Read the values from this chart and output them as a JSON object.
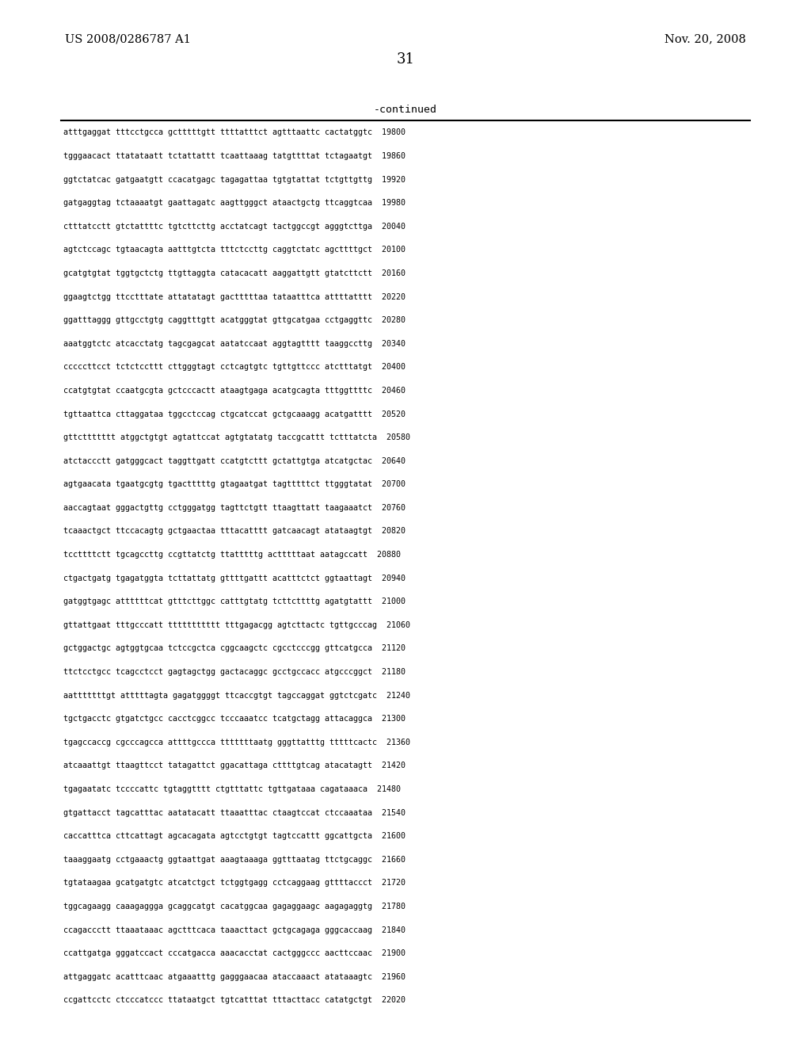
{
  "header_left": "US 2008/0286787 A1",
  "header_right": "Nov. 20, 2008",
  "page_number": "31",
  "continued_label": "-continued",
  "background_color": "#ffffff",
  "text_color": "#000000",
  "sequence_lines": [
    "atttgaggat tttcctgcca gctttttgtt ttttatttct agtttaattc cactatggtc  19800",
    "tgggaacact ttatataatt tctattattt tcaattaaag tatgttttat tctagaatgt  19860",
    "ggtctatcac gatgaatgtt ccacatgagc tagagattaa tgtgtattat tctgttgttg  19920",
    "gatgaggtag tctaaaatgt gaattagatc aagttgggct ataactgctg ttcaggtcaa  19980",
    "ctttatcctt gtctattttc tgtcttcttg acctatcagt tactggccgt agggtcttga  20040",
    "agtctccagc tgtaacagta aatttgtcta tttctccttg caggtctatc agcttttgct  20100",
    "gcatgtgtat tggtgctctg ttgttaggta catacacatt aaggattgtt gtatcttctt  20160",
    "ggaagtctgg ttcctttate attatatagt gactttttaa tataatttca attttatttt  20220",
    "ggatttaggg gttgcctgtg caggtttgtt acatgggtat gttgcatgaa cctgaggttc  20280",
    "aaatggtctc atcacctatg tagcgagcat aatatccaat aggtagtttt taaggccttg  20340",
    "cccccttcct tctctccttt cttgggtagt cctcagtgtc tgttgttccc atctttatgt  20400",
    "ccatgtgtat ccaatgcgta gctcccactt ataagtgaga acatgcagta tttggttttc  20460",
    "tgttaattca cttaggataa tggcctccag ctgcatccat gctgcaaagg acatgatttt  20520",
    "gttcttttttt atggctgtgt agtattccat agtgtatatg taccgcattt tctttatcta  20580",
    "atctaccctt gatgggcact taggttgatt ccatgtcttt gctattgtga atcatgctac  20640",
    "agtgaacata tgaatgcgtg tgactttttg gtagaatgat tagtttttct ttgggtatat  20700",
    "aaccagtaat gggactgttg cctgggatgg tagttctgtt ttaagttatt taagaaatct  20760",
    "tcaaactgct ttccacagtg gctgaactaa tttacatttt gatcaacagt atataagtgt  20820",
    "tccttttctt tgcagccttg ccgttatctg ttatttttg actttttaat aatagccatt  20880",
    "ctgactgatg tgagatggta tcttattatg gttttgattt acatttctct ggtaattagt  20940",
    "gatggtgagc attttttcat gtttcttggc catttgtatg tcttcttttg agatgtattt  21000",
    "gttattgaat tttgcccatt ttttttttttt tttgagacgg agtcttactc tgttgcccag  21060",
    "gctggactgc agtggtgcaa tctccgctca cggcaagctc cgcctcccgg gttcatgcca  21120",
    "ttctcctgcc tcagcctcct gagtagctgg gactacaggc gcctgccacc atgcccggct  21180",
    "aatttttttgt atttttagta gagatggggt ttcaccgtgt tagccaggat ggtctcgatc  21240",
    "tgctgacctc gtgatctgcc cacctcggcc tcccaaatcc tcatgctagg attacaggca  21300",
    "tgagccaccg cgcccagcca attttgccca tttttttaatg gggttatttg tttttcactc  21360",
    "atcaaattgt ttaagttcct tatagattct ggacattaga cttttgtcag atacatagtt  21420",
    "tgagaatatc tccccattc tgtaggtttt ctgtttattc tgttgataaa cagataaaca  21480",
    "gtgattacct tagcatttac aatatacatt ttaaatttac ctaagtccat ctccaaataa  21540",
    "caccatttca cttcattagt agcacagata agtcctgtgt tagtccattt ggcattgcta  21600",
    "taaaggaatg cctgaaactg ggtaattgat aaagtaaaga ggtttaatag ttctgcaggc  21660",
    "tgtataagaa gcatgatgtc atcatctgct tctggtgagg cctcaggaag gttttaccct  21720",
    "tggcagaagg caaagaggga gcaggcatgt cacatggcaa gagaggaagc aagagaggtg  21780",
    "ccagaccctt ttaaataaac agctttcaca taaacttact gctgcagaga gggcaccaag  21840",
    "ccattgatga gggatccact cccatgacca aaacacctat cactgggccc aacttccaac  21900",
    "attgaggatc acatttcaac atgaaatttg gagggaacaa ataccaaact atataaagtc  21960",
    "ccgattcctc ctcccatccc ttataatgct tgtcatttat tttacttacc catatgctgt  22020"
  ]
}
